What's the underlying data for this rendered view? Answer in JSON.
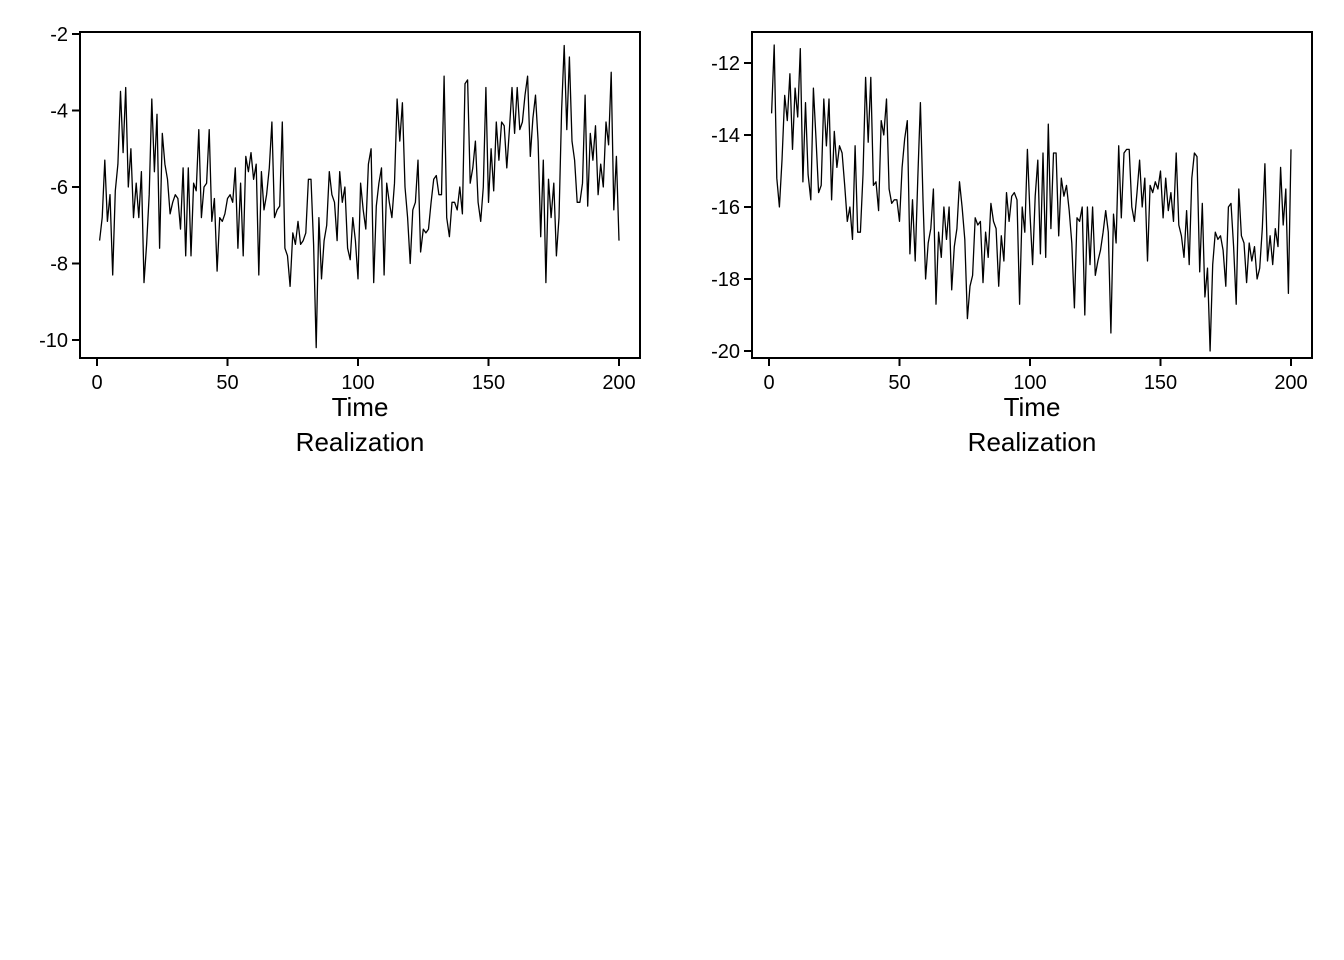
{
  "chart_data": [
    {
      "type": "line",
      "xlabel": "Time",
      "caption": "Realization",
      "xlim": [
        1,
        200
      ],
      "ylim": [
        -10.5,
        -2
      ],
      "xticks": [
        0,
        50,
        100,
        150,
        200
      ],
      "yticks": [
        -2,
        -4,
        -6,
        -8,
        -10
      ],
      "grid": false,
      "series": [
        {
          "x_start": 1,
          "x_step": 1,
          "y": [
            -7.4,
            -6.8,
            -5.3,
            -6.9,
            -6.2,
            -8.3,
            -6.1,
            -5.4,
            -3.5,
            -5.1,
            -3.4,
            -6.0,
            -5.0,
            -6.8,
            -5.9,
            -6.8,
            -5.6,
            -8.5,
            -7.5,
            -6.2,
            -3.7,
            -5.6,
            -4.1,
            -7.6,
            -4.6,
            -5.4,
            -5.8,
            -6.7,
            -6.4,
            -6.2,
            -6.3,
            -7.1,
            -5.5,
            -7.8,
            -5.5,
            -7.8,
            -5.9,
            -6.1,
            -4.5,
            -6.8,
            -6.0,
            -5.9,
            -4.5,
            -6.9,
            -6.3,
            -8.2,
            -6.8,
            -6.9,
            -6.7,
            -6.3,
            -6.2,
            -6.4,
            -5.5,
            -7.6,
            -5.9,
            -7.8,
            -5.2,
            -5.6,
            -5.1,
            -5.8,
            -5.4,
            -8.3,
            -5.6,
            -6.6,
            -6.2,
            -5.5,
            -4.3,
            -6.8,
            -6.6,
            -6.5,
            -4.3,
            -7.6,
            -7.8,
            -8.6,
            -7.2,
            -7.5,
            -6.9,
            -7.5,
            -7.4,
            -7.2,
            -5.8,
            -5.8,
            -7.5,
            -10.2,
            -6.8,
            -8.4,
            -7.4,
            -7.0,
            -5.6,
            -6.2,
            -6.4,
            -7.4,
            -5.6,
            -6.4,
            -6.0,
            -7.6,
            -7.9,
            -6.8,
            -7.4,
            -8.4,
            -5.9,
            -6.6,
            -7.1,
            -5.4,
            -5.0,
            -8.5,
            -6.5,
            -5.9,
            -5.5,
            -8.3,
            -5.9,
            -6.4,
            -6.8,
            -5.9,
            -3.7,
            -4.8,
            -3.8,
            -6.0,
            -6.8,
            -8.0,
            -6.6,
            -6.4,
            -5.3,
            -7.7,
            -7.1,
            -7.2,
            -7.1,
            -6.4,
            -5.8,
            -5.7,
            -6.2,
            -6.2,
            -3.1,
            -6.8,
            -7.3,
            -6.4,
            -6.4,
            -6.6,
            -6.0,
            -6.7,
            -3.3,
            -3.2,
            -5.9,
            -5.5,
            -4.8,
            -6.4,
            -6.9,
            -6.0,
            -3.4,
            -6.4,
            -5.0,
            -6.1,
            -4.3,
            -5.3,
            -4.3,
            -4.4,
            -5.5,
            -4.5,
            -3.4,
            -4.6,
            -3.4,
            -4.5,
            -4.3,
            -3.6,
            -3.1,
            -5.2,
            -4.2,
            -3.6,
            -4.8,
            -7.3,
            -5.3,
            -8.5,
            -5.8,
            -6.8,
            -5.9,
            -7.8,
            -6.8,
            -4.0,
            -2.3,
            -4.5,
            -2.6,
            -4.8,
            -5.3,
            -6.4,
            -6.4,
            -5.9,
            -3.6,
            -6.5,
            -4.6,
            -5.3,
            -4.4,
            -6.2,
            -5.4,
            -6.0,
            -4.3,
            -4.9,
            -3.0,
            -6.6,
            -5.2,
            -7.4
          ]
        }
      ]
    },
    {
      "type": "line",
      "xlabel": "Time",
      "caption": "Realization",
      "xlim": [
        1,
        200
      ],
      "ylim": [
        -20.2,
        -11
      ],
      "xticks": [
        0,
        50,
        100,
        150,
        200
      ],
      "yticks": [
        -12,
        -14,
        -16,
        -18,
        -20
      ],
      "grid": false,
      "series": [
        {
          "x_start": 1,
          "x_step": 1,
          "y": [
            -13.4,
            -11.5,
            -15.2,
            -16.0,
            -14.7,
            -12.9,
            -13.6,
            -12.3,
            -14.4,
            -12.7,
            -13.5,
            -11.6,
            -15.3,
            -13.1,
            -15.1,
            -15.8,
            -12.7,
            -14.1,
            -15.6,
            -15.4,
            -13.0,
            -14.3,
            -13.0,
            -15.8,
            -13.9,
            -14.9,
            -14.3,
            -14.5,
            -15.4,
            -16.4,
            -16.0,
            -16.9,
            -14.3,
            -16.7,
            -16.7,
            -15.1,
            -12.4,
            -14.2,
            -12.4,
            -15.4,
            -15.3,
            -16.1,
            -13.6,
            -14.0,
            -13.0,
            -15.5,
            -15.9,
            -15.8,
            -15.8,
            -16.4,
            -14.9,
            -14.1,
            -13.6,
            -17.3,
            -15.8,
            -17.5,
            -15.2,
            -13.1,
            -15.8,
            -18.0,
            -17.0,
            -16.6,
            -15.5,
            -18.7,
            -16.7,
            -17.4,
            -16.0,
            -16.9,
            -16.0,
            -18.3,
            -17.1,
            -16.6,
            -15.3,
            -16.0,
            -16.9,
            -19.1,
            -18.2,
            -17.9,
            -16.3,
            -16.5,
            -16.4,
            -18.1,
            -16.7,
            -17.4,
            -15.9,
            -16.4,
            -16.6,
            -18.2,
            -16.8,
            -17.5,
            -15.6,
            -16.4,
            -15.7,
            -15.6,
            -15.8,
            -18.7,
            -16.0,
            -16.7,
            -14.4,
            -16.2,
            -17.6,
            -15.7,
            -14.7,
            -17.3,
            -14.5,
            -17.4,
            -13.7,
            -16.6,
            -14.5,
            -14.5,
            -16.8,
            -15.2,
            -15.7,
            -15.4,
            -16.1,
            -17.0,
            -18.8,
            -16.3,
            -16.4,
            -16.0,
            -19.0,
            -16.0,
            -17.6,
            -16.0,
            -17.9,
            -17.5,
            -17.2,
            -16.7,
            -16.1,
            -16.7,
            -19.5,
            -16.2,
            -17.0,
            -14.3,
            -16.3,
            -14.5,
            -14.4,
            -14.4,
            -16.0,
            -16.4,
            -15.6,
            -14.7,
            -16.0,
            -15.2,
            -17.5,
            -15.4,
            -15.6,
            -15.3,
            -15.5,
            -15.0,
            -16.3,
            -15.2,
            -16.1,
            -15.6,
            -16.4,
            -14.5,
            -16.5,
            -16.8,
            -17.4,
            -16.1,
            -17.6,
            -15.2,
            -14.5,
            -14.6,
            -17.8,
            -15.9,
            -18.5,
            -17.7,
            -20.0,
            -17.6,
            -16.7,
            -16.9,
            -16.8,
            -17.2,
            -18.2,
            -16.0,
            -15.9,
            -17.1,
            -18.7,
            -15.5,
            -16.8,
            -17.0,
            -18.1,
            -17.0,
            -17.5,
            -17.1,
            -18.0,
            -17.7,
            -16.6,
            -14.8,
            -17.5,
            -16.8,
            -17.6,
            -16.6,
            -17.1,
            -14.9,
            -16.5,
            -15.5,
            -18.4,
            -14.4
          ]
        }
      ]
    }
  ]
}
